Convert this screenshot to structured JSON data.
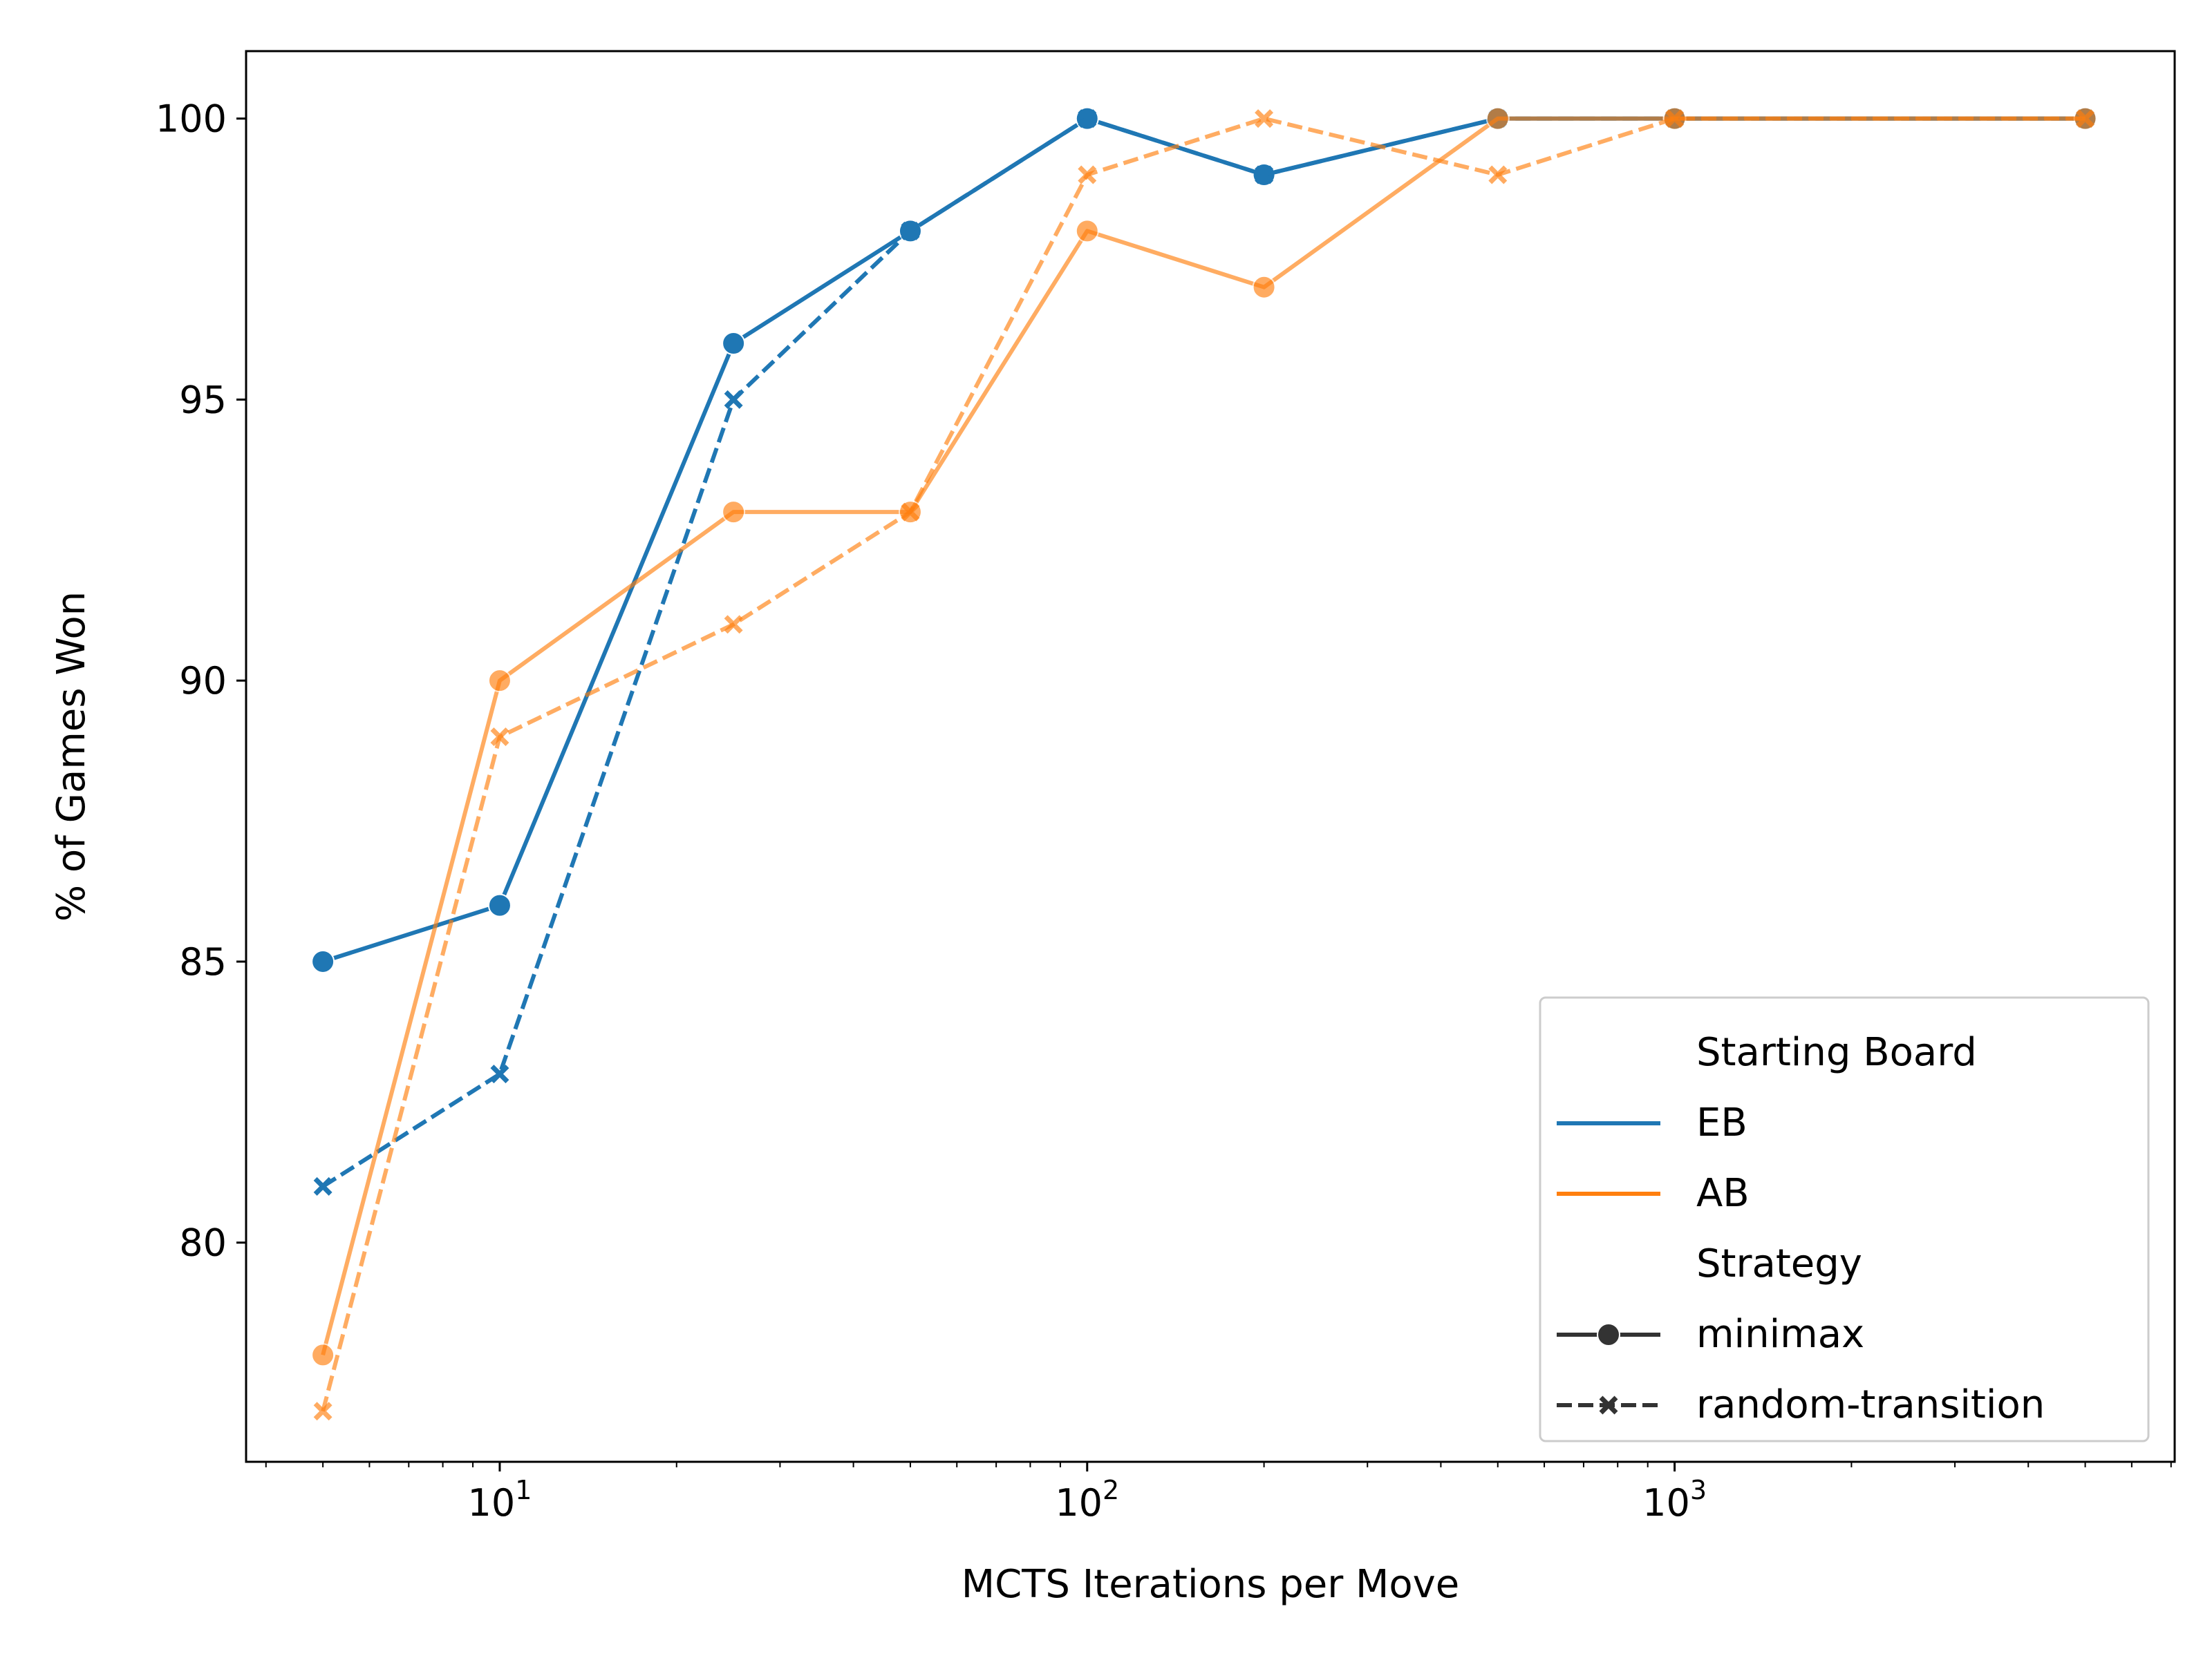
{
  "chart_data": {
    "type": "line",
    "xlabel": "MCTS Iterations per Move",
    "ylabel": "% of Games Won",
    "xscale": "log",
    "xlim": [
      3.7,
      7100
    ],
    "ylim": [
      76.1,
      101.2
    ],
    "xticks": [
      {
        "value": 10,
        "base": "10",
        "exp": "1"
      },
      {
        "value": 100,
        "base": "10",
        "exp": "2"
      },
      {
        "value": 1000,
        "base": "10",
        "exp": "3"
      }
    ],
    "yticks": [
      80,
      85,
      90,
      95,
      100
    ],
    "grid": false,
    "legend_position": "lower right",
    "colors": {
      "EB": "#1f77b4",
      "AB": "#ff7f0e",
      "marker_key": "#333333"
    },
    "series": [
      {
        "board": "EB",
        "strategy": "minimax",
        "x": [
          5,
          10,
          25,
          50,
          100,
          200,
          500,
          1000,
          5000
        ],
        "y": [
          85,
          86,
          96,
          98,
          100,
          99,
          100,
          100,
          100
        ]
      },
      {
        "board": "EB",
        "strategy": "random-transition",
        "x": [
          5,
          10,
          25,
          50,
          100,
          200,
          500,
          1000,
          5000
        ],
        "y": [
          81,
          83,
          95,
          98,
          100,
          99,
          100,
          100,
          100
        ]
      },
      {
        "board": "AB",
        "strategy": "minimax",
        "x": [
          5,
          10,
          25,
          50,
          100,
          200,
          500,
          1000,
          5000
        ],
        "y": [
          78,
          90,
          93,
          93,
          98,
          97,
          100,
          100,
          100
        ]
      },
      {
        "board": "AB",
        "strategy": "random-transition",
        "x": [
          5,
          10,
          25,
          50,
          100,
          200,
          500,
          1000,
          5000
        ],
        "y": [
          77,
          89,
          91,
          93,
          99,
          100,
          99,
          100,
          100
        ]
      }
    ],
    "legend": {
      "hue_title": "Starting Board",
      "hue_entries": [
        "EB",
        "AB"
      ],
      "style_title": "Strategy",
      "style_entries": [
        "minimax",
        "random-transition"
      ]
    }
  }
}
